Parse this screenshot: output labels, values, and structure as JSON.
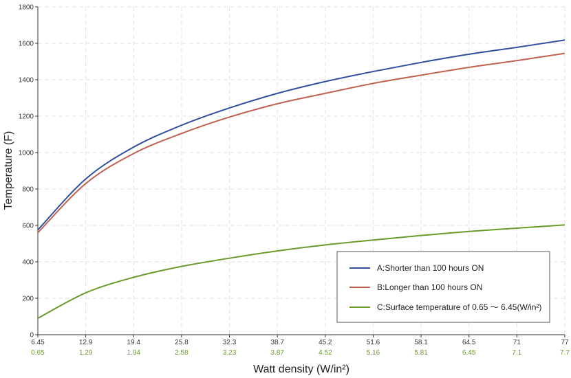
{
  "chart_data": {
    "type": "line",
    "xlabel": "Watt density (W/in²)",
    "ylabel": "Temperature (F)",
    "ylim": [
      0,
      1800
    ],
    "yticks": [
      0,
      200,
      400,
      600,
      800,
      1000,
      1200,
      1400,
      1600,
      1800
    ],
    "grid": true,
    "legend_position": "bottom-right",
    "x_ticks_primary": [
      "6.45",
      "12.9",
      "19.4",
      "25.8",
      "32.3",
      "38.7",
      "45.2",
      "51.6",
      "58.1",
      "64.5",
      "71",
      "77"
    ],
    "x_ticks_secondary": [
      "0.65",
      "1.29",
      "1.94",
      "2.58",
      "3.23",
      "3.87",
      "4.52",
      "5.16",
      "5.81",
      "6.45",
      "7.1",
      "7.7"
    ],
    "series": [
      {
        "name": "A:Shorter than 100 hours ON",
        "color": "#2e4e9e",
        "values": [
          575,
          855,
          1030,
          1150,
          1245,
          1325,
          1390,
          1445,
          1495,
          1540,
          1578,
          1618
        ]
      },
      {
        "name": "B:Longer than 100 hours ON",
        "color": "#c0604f",
        "values": [
          560,
          830,
          995,
          1105,
          1195,
          1268,
          1325,
          1380,
          1425,
          1468,
          1505,
          1545
        ]
      },
      {
        "name": "C:Surface temperature of 0.65 ～ 6.45(W/in²)",
        "color": "#6a9a2a",
        "values": [
          90,
          230,
          315,
          375,
          420,
          460,
          493,
          520,
          545,
          567,
          585,
          603
        ]
      }
    ]
  }
}
